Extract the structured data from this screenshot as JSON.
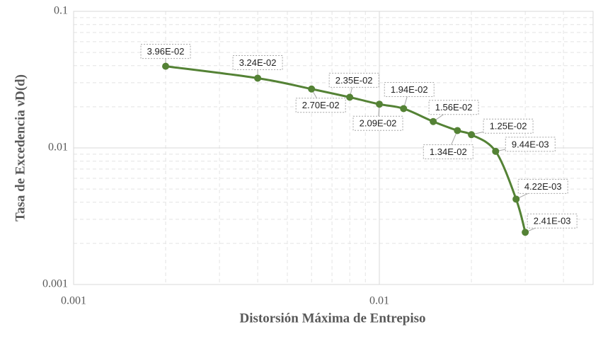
{
  "chart_data": {
    "type": "line",
    "x_label": "Distorsión Máxima de Entrepiso",
    "y_label": "Tasa de Excedencia νD(d)",
    "x": [
      0.002,
      0.004,
      0.006,
      0.008,
      0.01,
      0.012,
      0.015,
      0.018,
      0.02,
      0.024,
      0.028,
      0.03
    ],
    "series": [
      {
        "color": "#548235",
        "values": [
          0.0396,
          0.0324,
          0.027,
          0.0235,
          0.0209,
          0.0194,
          0.0156,
          0.0134,
          0.0125,
          0.00944,
          0.00422,
          0.00241
        ],
        "value_labels": [
          "3.96E-02",
          "3.24E-02",
          "2.70E-02",
          "2.35E-02",
          "2.09E-02",
          "1.94E-02",
          "1.56E-02",
          "1.34E-02",
          "1.25E-02",
          "9.44E-03",
          "4.22E-03",
          "2.41E-03"
        ]
      }
    ],
    "xlim": [
      0.001,
      0.05
    ],
    "ylim": [
      0.001,
      0.1
    ],
    "xticks": [
      0.001,
      0.01
    ],
    "yticks": [
      0.001,
      0.01,
      0.1
    ],
    "x_log": true,
    "y_log": true,
    "grid": true,
    "minor_grid": true
  }
}
